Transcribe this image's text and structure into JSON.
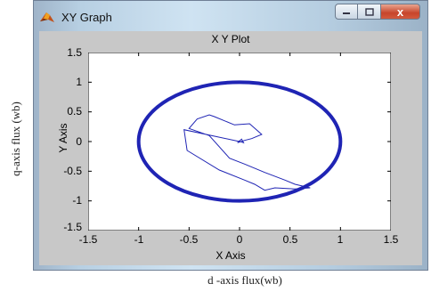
{
  "page": {
    "outer_ylabel": "q-axis flux (wb)",
    "outer_xlabel": "d -axis flux(wb)"
  },
  "window": {
    "title": "XY Graph",
    "icon": "matlab-logo-icon",
    "buttons": {
      "minimize": "minimize-icon",
      "maximize": "maximize-icon",
      "close": "close-icon"
    },
    "close_glyph": "x"
  },
  "chart_data": {
    "type": "line",
    "title": "X Y Plot",
    "xlabel": "X Axis",
    "ylabel": "Y Axis",
    "xlim": [
      -1.5,
      1.5
    ],
    "ylim": [
      -1.5,
      1.5
    ],
    "xticks": [
      "-1.5",
      "-1",
      "-0.5",
      "0",
      "0.5",
      "1",
      "1.5"
    ],
    "yticks": [
      "1.5",
      "1",
      "0.5",
      "0",
      "-0.5",
      "-1",
      "-1.5"
    ],
    "grid": false,
    "line_color": "#1f24b4",
    "series": [
      {
        "kind": "circle-trajectory",
        "center": [
          0,
          0
        ],
        "radius_x": 1.0,
        "radius_y": 1.0,
        "thick": true
      },
      {
        "kind": "transient-trajectory",
        "points": [
          [
            0.0,
            0.0
          ],
          [
            -0.55,
            0.2
          ],
          [
            -0.52,
            -0.15
          ],
          [
            -0.2,
            -0.48
          ],
          [
            0.05,
            -0.65
          ],
          [
            0.15,
            -0.72
          ],
          [
            0.25,
            -0.82
          ],
          [
            0.35,
            -0.78
          ],
          [
            0.55,
            -0.8
          ],
          [
            0.7,
            -0.78
          ],
          [
            0.55,
            -0.72
          ],
          [
            0.45,
            -0.65
          ],
          [
            0.25,
            -0.52
          ],
          [
            0.05,
            -0.38
          ],
          [
            -0.1,
            -0.28
          ],
          [
            -0.3,
            0.1
          ],
          [
            -0.5,
            0.22
          ],
          [
            -0.42,
            0.38
          ],
          [
            -0.3,
            0.45
          ],
          [
            -0.25,
            0.42
          ],
          [
            -0.05,
            0.28
          ],
          [
            0.1,
            0.3
          ],
          [
            0.22,
            0.12
          ],
          [
            0.12,
            0.05
          ],
          [
            0.05,
            0.02
          ],
          [
            -0.02,
            -0.02
          ],
          [
            0.02,
            0.04
          ],
          [
            0.04,
            -0.02
          ],
          [
            -0.01,
            0.01
          ]
        ]
      }
    ]
  }
}
